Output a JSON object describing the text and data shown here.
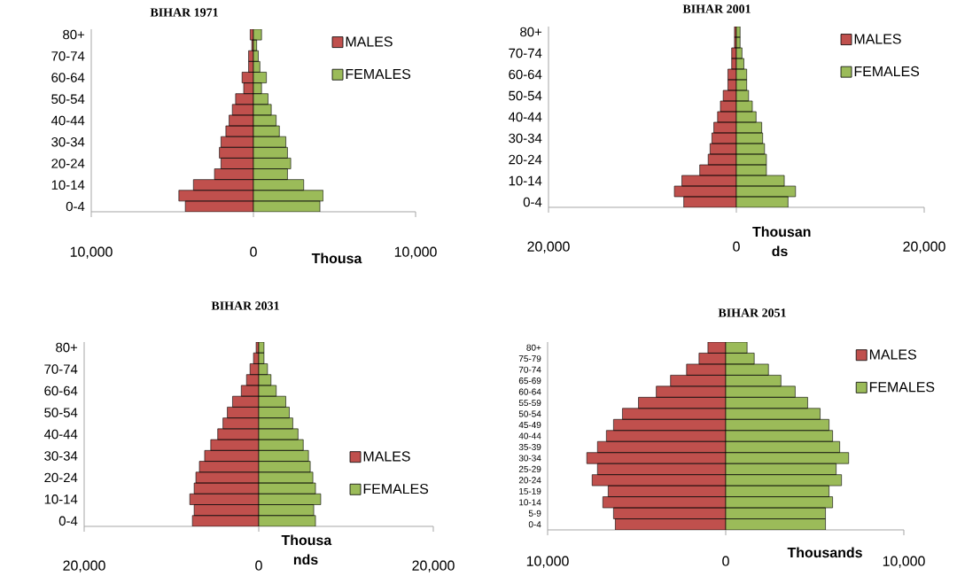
{
  "chart_data": [
    {
      "type": "bar",
      "orientation": "horizontal",
      "stacked": true,
      "title": "BIHAR 1971",
      "xlabel": "Thousa",
      "legend": "top right",
      "categories": [
        "80+",
        null,
        "70-74",
        null,
        "60-64",
        null,
        "50-54",
        null,
        "40-44",
        null,
        "30-34",
        null,
        "20-24",
        null,
        "10-14",
        null,
        "0-4"
      ],
      "series": [
        {
          "name": "MALES",
          "color": "#c0504d",
          "values": [
            -200,
            -100,
            -300,
            -300,
            -700,
            -600,
            -1100,
            -1300,
            -1500,
            -1700,
            -2000,
            -2100,
            -2000,
            -2400,
            -3700,
            -4600,
            -4200
          ]
        },
        {
          "name": "FEMALES",
          "color": "#9bbb59",
          "values": [
            500,
            200,
            300,
            400,
            800,
            500,
            900,
            1100,
            1400,
            1600,
            2000,
            2100,
            2300,
            2100,
            3100,
            4300,
            4100
          ]
        }
      ],
      "xlim": [
        -10000,
        10000
      ],
      "xticks": [
        {
          "value": -10000,
          "label": "10,000"
        },
        0,
        {
          "value": 10000,
          "label": "10,000"
        }
      ]
    },
    {
      "type": "bar",
      "orientation": "horizontal",
      "stacked": true,
      "title": "BIHAR 2001",
      "xlabel": "Thousan ds",
      "legend": "top right",
      "categories": [
        "80+",
        null,
        "70-74",
        null,
        "60-64",
        null,
        "50-54",
        null,
        "40-44",
        null,
        "30-34",
        null,
        "20-24",
        null,
        "10-14",
        null,
        "0-4"
      ],
      "series": [
        {
          "name": "MALES",
          "color": "#c0504d",
          "values": [
            -200,
            -200,
            -500,
            -500,
            -900,
            -900,
            -1400,
            -1700,
            -2000,
            -2400,
            -2600,
            -2800,
            -3000,
            -3900,
            -5800,
            -6600,
            -5600
          ]
        },
        {
          "name": "FEMALES",
          "color": "#9bbb59",
          "values": [
            400,
            400,
            600,
            800,
            1100,
            1100,
            1300,
            1700,
            2100,
            2700,
            2800,
            3000,
            3200,
            3200,
            5100,
            6300,
            5500
          ]
        }
      ],
      "xlim": [
        -20000,
        20000
      ],
      "xticks": [
        {
          "value": -20000,
          "label": "20,000"
        },
        0,
        {
          "value": 20000,
          "label": "20,000"
        }
      ]
    },
    {
      "type": "bar",
      "orientation": "horizontal",
      "stacked": true,
      "title": "BIHAR 2031",
      "xlabel": "Thousa nds",
      "legend": "bottom right",
      "categories": [
        "80+",
        null,
        "70-74",
        null,
        "60-64",
        null,
        "50-54",
        null,
        "40-44",
        null,
        "30-34",
        null,
        "20-24",
        null,
        "10-14",
        null,
        "0-4"
      ],
      "series": [
        {
          "name": "MALES",
          "color": "#c0504d",
          "values": [
            -300,
            -600,
            -1000,
            -1400,
            -2000,
            -3000,
            -3600,
            -4100,
            -4700,
            -5500,
            -6200,
            -6800,
            -7200,
            -7400,
            -7900,
            -7400,
            -7600
          ]
        },
        {
          "name": "FEMALES",
          "color": "#9bbb59",
          "values": [
            600,
            600,
            1000,
            1400,
            2000,
            3100,
            3500,
            3900,
            4500,
            5100,
            5700,
            5900,
            6200,
            6500,
            7100,
            6300,
            6500
          ]
        }
      ],
      "xlim": [
        -20000,
        20000
      ],
      "xticks": [
        {
          "value": -20000,
          "label": "20,000"
        },
        0,
        {
          "value": 20000,
          "label": "20,000"
        }
      ]
    },
    {
      "type": "bar",
      "orientation": "horizontal",
      "stacked": true,
      "title": "BIHAR 2051",
      "xlabel": "Thousands",
      "legend": "top right",
      "categories": [
        "80+",
        "75-79",
        "70-74",
        "65-69",
        "60-64",
        "55-59",
        "50-54",
        "45-49",
        "40-44",
        "35-39",
        "30-34",
        "25-29",
        "20-24",
        "15-19",
        "10-14",
        "5-9",
        "0-4"
      ],
      "series": [
        {
          "name": "MALES",
          "color": "#c0504d",
          "values": [
            -1000,
            -1500,
            -2200,
            -3100,
            -3900,
            -4900,
            -5800,
            -6300,
            -6700,
            -7200,
            -7800,
            -7200,
            -7500,
            -6600,
            -6900,
            -6300,
            -6200
          ]
        },
        {
          "name": "FEMALES",
          "color": "#9bbb59",
          "values": [
            1200,
            1600,
            2400,
            3100,
            3900,
            4600,
            5300,
            5800,
            6000,
            6400,
            6900,
            6200,
            6500,
            5800,
            6000,
            5600,
            5600
          ]
        }
      ],
      "xlim": [
        -10000,
        10000
      ],
      "xticks": [
        {
          "value": -10000,
          "label": "10,000"
        },
        0,
        {
          "value": 10000,
          "label": "10,000"
        }
      ]
    }
  ]
}
